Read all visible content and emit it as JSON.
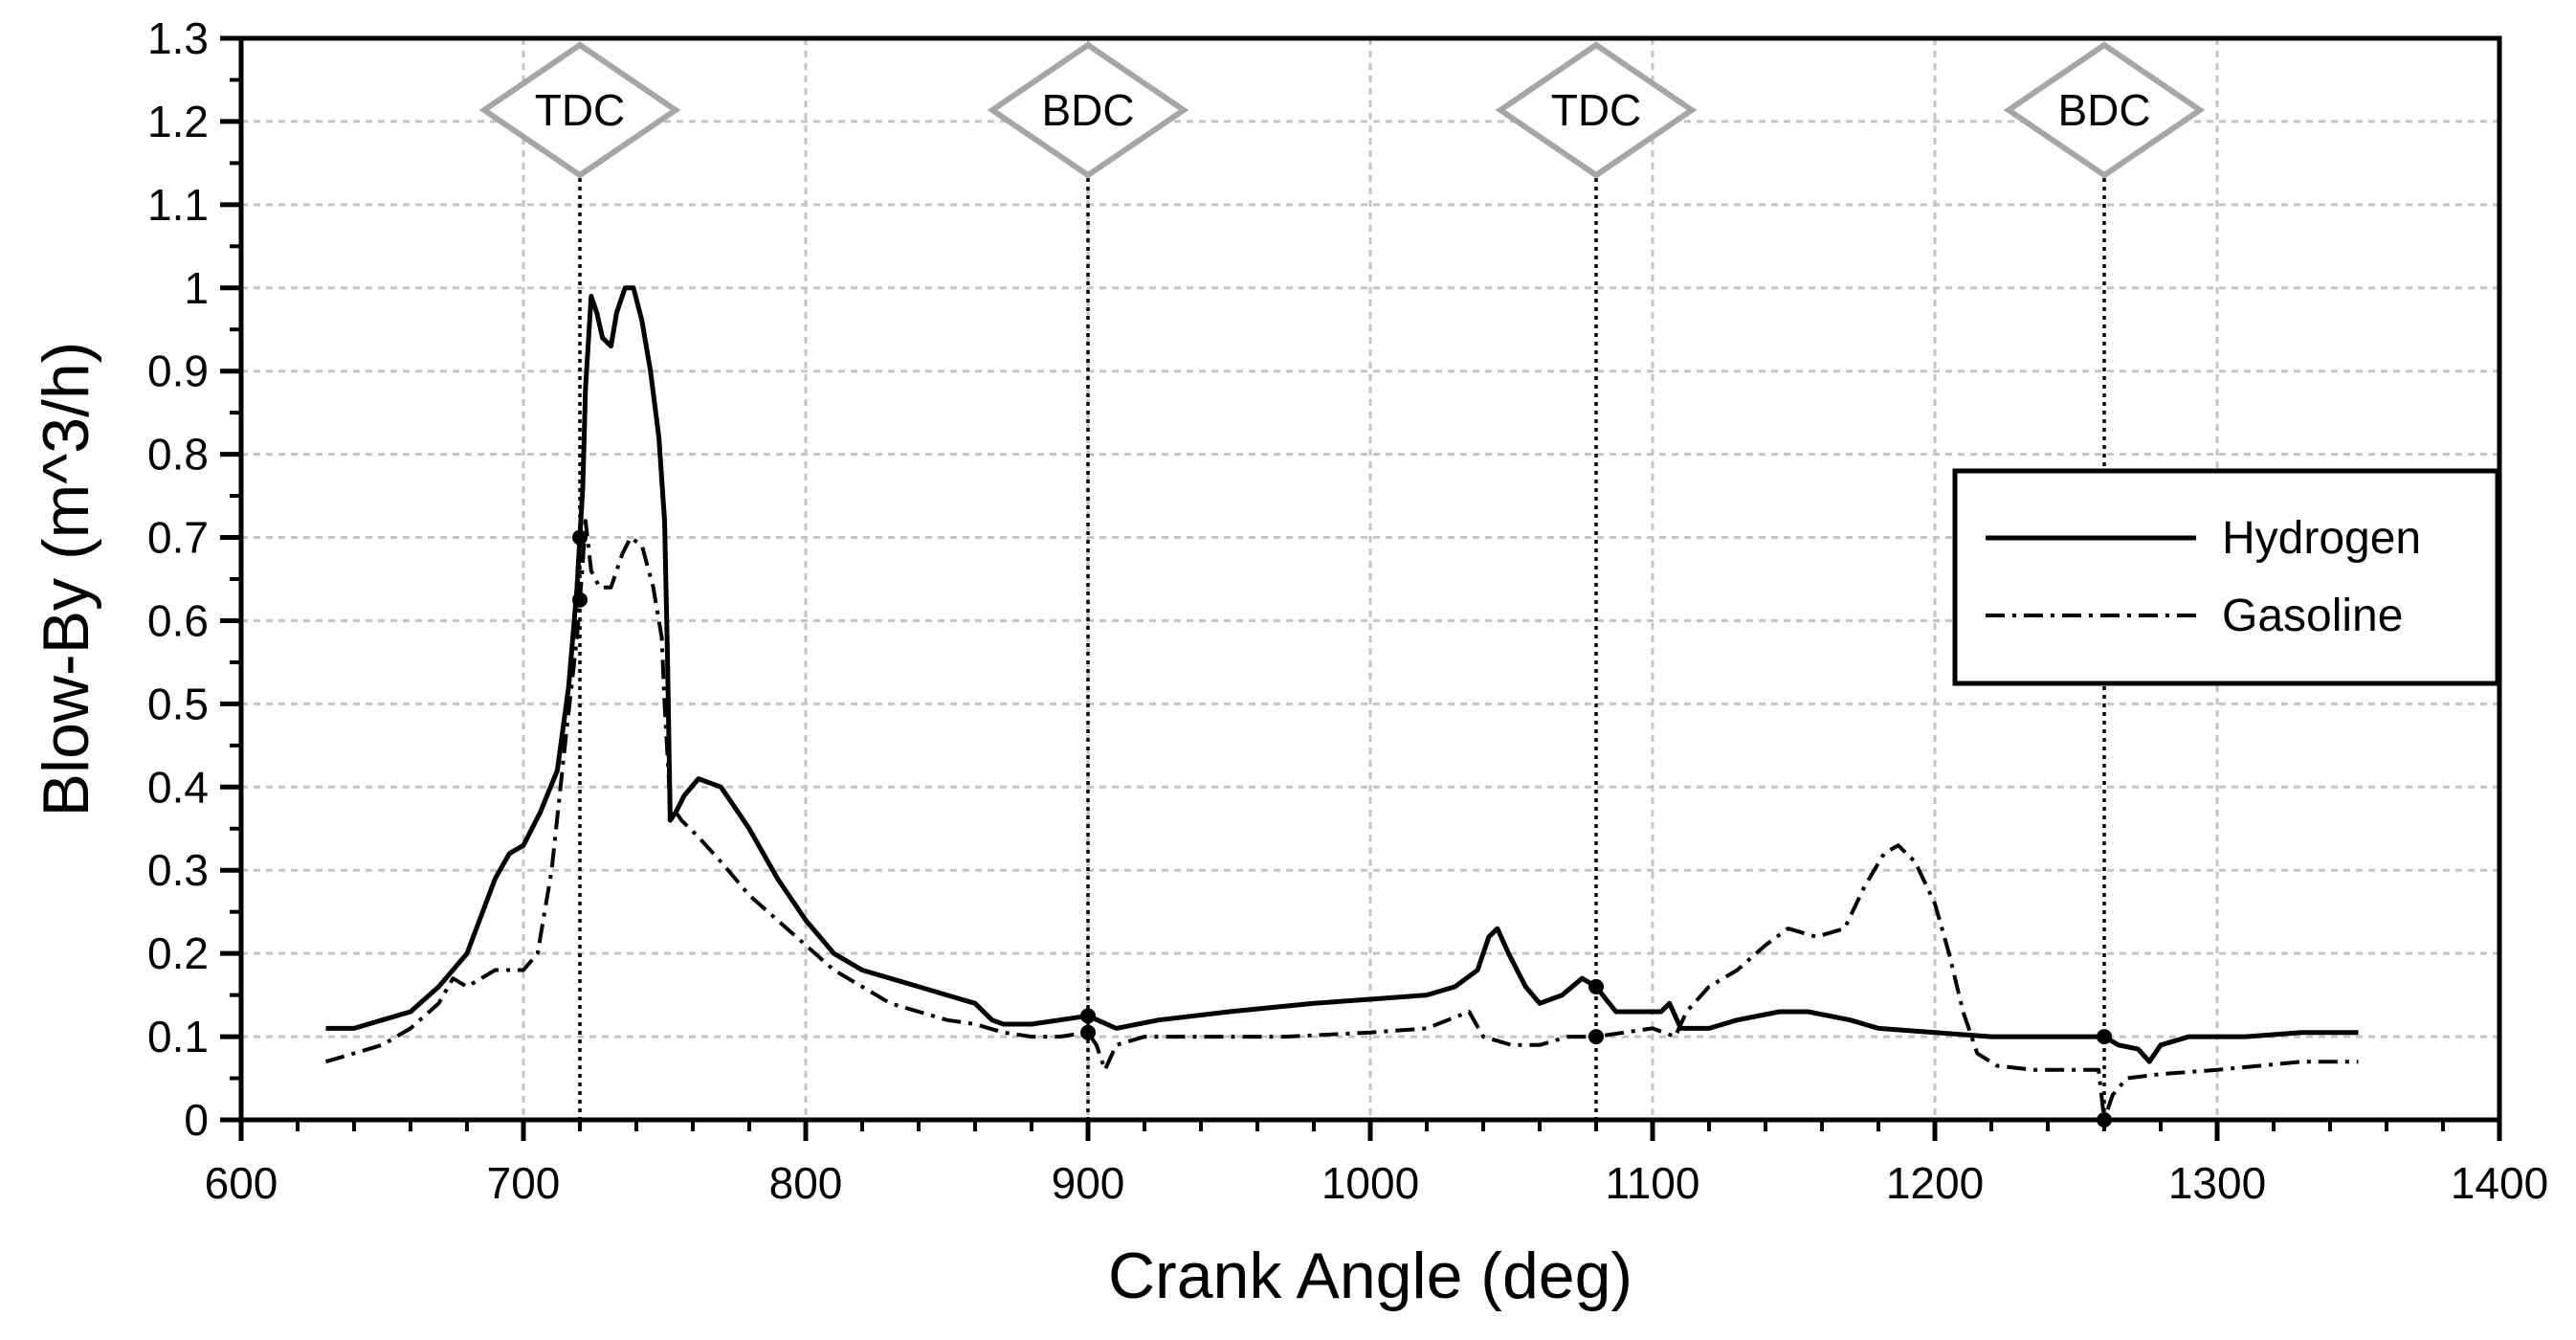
{
  "chart_data": {
    "type": "line",
    "title": "",
    "xlabel": "Crank Angle (deg)",
    "ylabel": "Blow-By (m^3/h)",
    "xlim": [
      600,
      1400
    ],
    "ylim": [
      0,
      1.3
    ],
    "xticks": [
      "600",
      "700",
      "800",
      "900",
      "1000",
      "1100",
      "1200",
      "1300",
      "1400"
    ],
    "yticks": [
      "0",
      "0.1",
      "0.2",
      "0.3",
      "0.4",
      "0.5",
      "0.6",
      "0.7",
      "0.8",
      "0.9",
      "1",
      "1.1",
      "1.2",
      "1.3"
    ],
    "grid": true,
    "legend_position": "right",
    "markers": [
      {
        "label": "TDC",
        "x": 720
      },
      {
        "label": "BDC",
        "x": 900
      },
      {
        "label": "TDC",
        "x": 1080
      },
      {
        "label": "BDC",
        "x": 1260
      }
    ],
    "series": [
      {
        "name": "Hydrogen",
        "style": "solid",
        "points": [
          [
            630,
            0.11
          ],
          [
            640,
            0.11
          ],
          [
            650,
            0.12
          ],
          [
            660,
            0.13
          ],
          [
            670,
            0.16
          ],
          [
            680,
            0.2
          ],
          [
            690,
            0.29
          ],
          [
            695,
            0.32
          ],
          [
            700,
            0.33
          ],
          [
            706,
            0.37
          ],
          [
            712,
            0.42
          ],
          [
            716,
            0.52
          ],
          [
            719,
            0.64
          ],
          [
            721,
            0.76
          ],
          [
            722,
            0.88
          ],
          [
            724,
            0.99
          ],
          [
            726,
            0.97
          ],
          [
            728,
            0.94
          ],
          [
            731,
            0.93
          ],
          [
            733,
            0.97
          ],
          [
            736,
            1.0
          ],
          [
            739,
            1.0
          ],
          [
            742,
            0.96
          ],
          [
            745,
            0.9
          ],
          [
            748,
            0.82
          ],
          [
            750,
            0.72
          ],
          [
            751,
            0.56
          ],
          [
            752,
            0.36
          ],
          [
            754,
            0.37
          ],
          [
            757,
            0.39
          ],
          [
            762,
            0.41
          ],
          [
            770,
            0.4
          ],
          [
            780,
            0.35
          ],
          [
            790,
            0.29
          ],
          [
            800,
            0.24
          ],
          [
            810,
            0.2
          ],
          [
            820,
            0.18
          ],
          [
            830,
            0.17
          ],
          [
            840,
            0.16
          ],
          [
            850,
            0.15
          ],
          [
            860,
            0.14
          ],
          [
            866,
            0.12
          ],
          [
            870,
            0.115
          ],
          [
            880,
            0.115
          ],
          [
            890,
            0.12
          ],
          [
            900,
            0.125
          ],
          [
            910,
            0.11
          ],
          [
            925,
            0.12
          ],
          [
            950,
            0.13
          ],
          [
            980,
            0.14
          ],
          [
            1000,
            0.145
          ],
          [
            1020,
            0.15
          ],
          [
            1030,
            0.16
          ],
          [
            1038,
            0.18
          ],
          [
            1042,
            0.22
          ],
          [
            1045,
            0.23
          ],
          [
            1049,
            0.2
          ],
          [
            1055,
            0.16
          ],
          [
            1060,
            0.14
          ],
          [
            1068,
            0.15
          ],
          [
            1075,
            0.17
          ],
          [
            1080,
            0.16
          ],
          [
            1087,
            0.13
          ],
          [
            1095,
            0.13
          ],
          [
            1103,
            0.13
          ],
          [
            1106,
            0.14
          ],
          [
            1110,
            0.11
          ],
          [
            1120,
            0.11
          ],
          [
            1130,
            0.12
          ],
          [
            1145,
            0.13
          ],
          [
            1155,
            0.13
          ],
          [
            1170,
            0.12
          ],
          [
            1180,
            0.11
          ],
          [
            1200,
            0.105
          ],
          [
            1220,
            0.1
          ],
          [
            1230,
            0.1
          ],
          [
            1245,
            0.1
          ],
          [
            1260,
            0.1
          ],
          [
            1265,
            0.09
          ],
          [
            1272,
            0.085
          ],
          [
            1276,
            0.07
          ],
          [
            1280,
            0.09
          ],
          [
            1290,
            0.1
          ],
          [
            1310,
            0.1
          ],
          [
            1330,
            0.105
          ],
          [
            1350,
            0.105
          ]
        ]
      },
      {
        "name": "Gasoline",
        "style": "dash-dot",
        "points": [
          [
            630,
            0.07
          ],
          [
            640,
            0.08
          ],
          [
            650,
            0.09
          ],
          [
            660,
            0.11
          ],
          [
            670,
            0.14
          ],
          [
            675,
            0.17
          ],
          [
            680,
            0.16
          ],
          [
            685,
            0.17
          ],
          [
            690,
            0.18
          ],
          [
            695,
            0.18
          ],
          [
            700,
            0.18
          ],
          [
            705,
            0.2
          ],
          [
            710,
            0.3
          ],
          [
            715,
            0.46
          ],
          [
            719,
            0.58
          ],
          [
            721,
            0.67
          ],
          [
            722,
            0.72
          ],
          [
            724,
            0.66
          ],
          [
            727,
            0.64
          ],
          [
            731,
            0.64
          ],
          [
            735,
            0.68
          ],
          [
            738,
            0.7
          ],
          [
            742,
            0.69
          ],
          [
            746,
            0.64
          ],
          [
            749,
            0.58
          ],
          [
            750,
            0.5
          ],
          [
            752,
            0.38
          ],
          [
            756,
            0.36
          ],
          [
            762,
            0.34
          ],
          [
            770,
            0.31
          ],
          [
            780,
            0.27
          ],
          [
            790,
            0.24
          ],
          [
            800,
            0.21
          ],
          [
            810,
            0.18
          ],
          [
            820,
            0.16
          ],
          [
            830,
            0.14
          ],
          [
            840,
            0.13
          ],
          [
            850,
            0.12
          ],
          [
            860,
            0.115
          ],
          [
            870,
            0.105
          ],
          [
            880,
            0.1
          ],
          [
            890,
            0.1
          ],
          [
            900,
            0.105
          ],
          [
            903,
            0.09
          ],
          [
            906,
            0.06
          ],
          [
            910,
            0.09
          ],
          [
            920,
            0.1
          ],
          [
            940,
            0.1
          ],
          [
            970,
            0.1
          ],
          [
            1000,
            0.105
          ],
          [
            1020,
            0.11
          ],
          [
            1035,
            0.13
          ],
          [
            1040,
            0.1
          ],
          [
            1050,
            0.09
          ],
          [
            1060,
            0.09
          ],
          [
            1070,
            0.1
          ],
          [
            1080,
            0.1
          ],
          [
            1090,
            0.105
          ],
          [
            1100,
            0.11
          ],
          [
            1108,
            0.1
          ],
          [
            1112,
            0.13
          ],
          [
            1120,
            0.16
          ],
          [
            1130,
            0.18
          ],
          [
            1140,
            0.21
          ],
          [
            1148,
            0.23
          ],
          [
            1158,
            0.22
          ],
          [
            1168,
            0.23
          ],
          [
            1175,
            0.28
          ],
          [
            1182,
            0.32
          ],
          [
            1187,
            0.33
          ],
          [
            1193,
            0.31
          ],
          [
            1200,
            0.26
          ],
          [
            1205,
            0.2
          ],
          [
            1210,
            0.13
          ],
          [
            1215,
            0.08
          ],
          [
            1222,
            0.065
          ],
          [
            1235,
            0.06
          ],
          [
            1250,
            0.06
          ],
          [
            1258,
            0.06
          ],
          [
            1260,
            0.0
          ],
          [
            1263,
            0.03
          ],
          [
            1268,
            0.05
          ],
          [
            1280,
            0.055
          ],
          [
            1300,
            0.06
          ],
          [
            1330,
            0.07
          ],
          [
            1350,
            0.07
          ]
        ]
      }
    ]
  }
}
